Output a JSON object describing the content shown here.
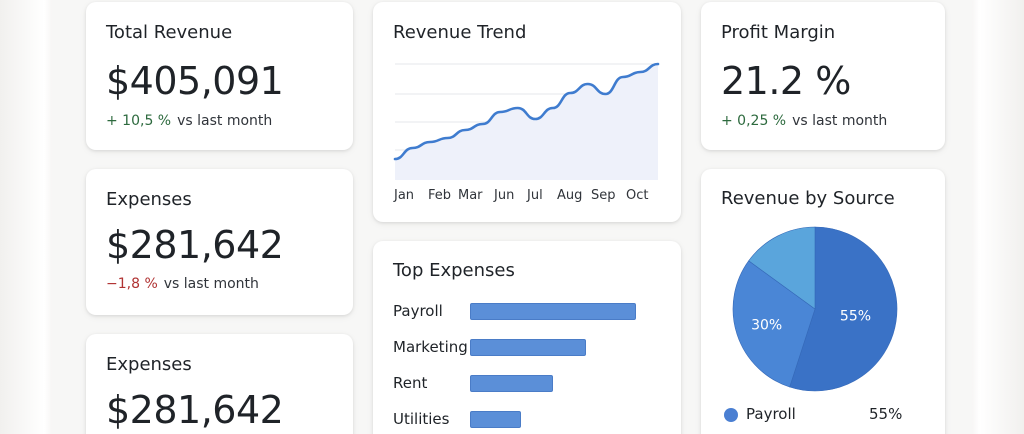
{
  "cards": {
    "total_revenue": {
      "title": "Total Revenue",
      "value": "$405,091",
      "delta": "+ 10,5 %",
      "delta_suffix": "vs last month"
    },
    "expenses_1": {
      "title": "Expenses",
      "value": "$281,642",
      "delta": "−1,8 %",
      "delta_suffix": "vs last month"
    },
    "expenses_2": {
      "title": "Expenses",
      "value": "$281,642"
    },
    "revenue_trend": {
      "title": "Revenue Trend",
      "months": [
        "Jan",
        "Feb",
        "Mar",
        "Jun",
        "Jul",
        "Aug",
        "Sep",
        "Oct"
      ]
    },
    "top_expenses": {
      "title": "Top Expenses",
      "items": [
        {
          "label": "Payroll"
        },
        {
          "label": "Marketing"
        },
        {
          "label": "Rent"
        },
        {
          "label": "Utilities"
        }
      ]
    },
    "profit_margin": {
      "title": "Profit Margin",
      "value": "21.2 %",
      "delta": "+ 0,25 %",
      "delta_suffix": "vs last month"
    },
    "revenue_by_source": {
      "title": "Revenue by Source",
      "legend": [
        {
          "label": "Payroll",
          "value": "55%"
        }
      ]
    }
  },
  "chart_data": [
    {
      "type": "line",
      "title": "Revenue Trend",
      "x": [
        "Jan",
        "",
        "Feb",
        "",
        "Mar",
        "",
        "Jun",
        "",
        "Jul",
        "",
        "Aug",
        "",
        "Sep",
        "",
        "Oct",
        ""
      ],
      "series": [
        {
          "values": [
            5,
            16,
            22,
            26,
            34,
            40,
            52,
            56,
            45,
            56,
            71,
            80,
            70,
            87,
            92,
            100
          ]
        }
      ],
      "ylim": [
        0,
        100
      ],
      "grid": true,
      "color": "#3f7ccf"
    },
    {
      "type": "bar",
      "title": "Top Expenses",
      "categories": [
        "Payroll",
        "Marketing",
        "Rent",
        "Utilities"
      ],
      "values": [
        100,
        70,
        50,
        31
      ],
      "color": "#5b8fd8"
    },
    {
      "type": "pie",
      "title": "Revenue by Source",
      "slices": [
        {
          "label": "55%",
          "value": 55,
          "color": "#3a72c6"
        },
        {
          "label": "30%",
          "value": 30,
          "color": "#4a86d6"
        },
        {
          "label": "",
          "value": 15,
          "color": "#5aa5dc"
        }
      ]
    }
  ]
}
